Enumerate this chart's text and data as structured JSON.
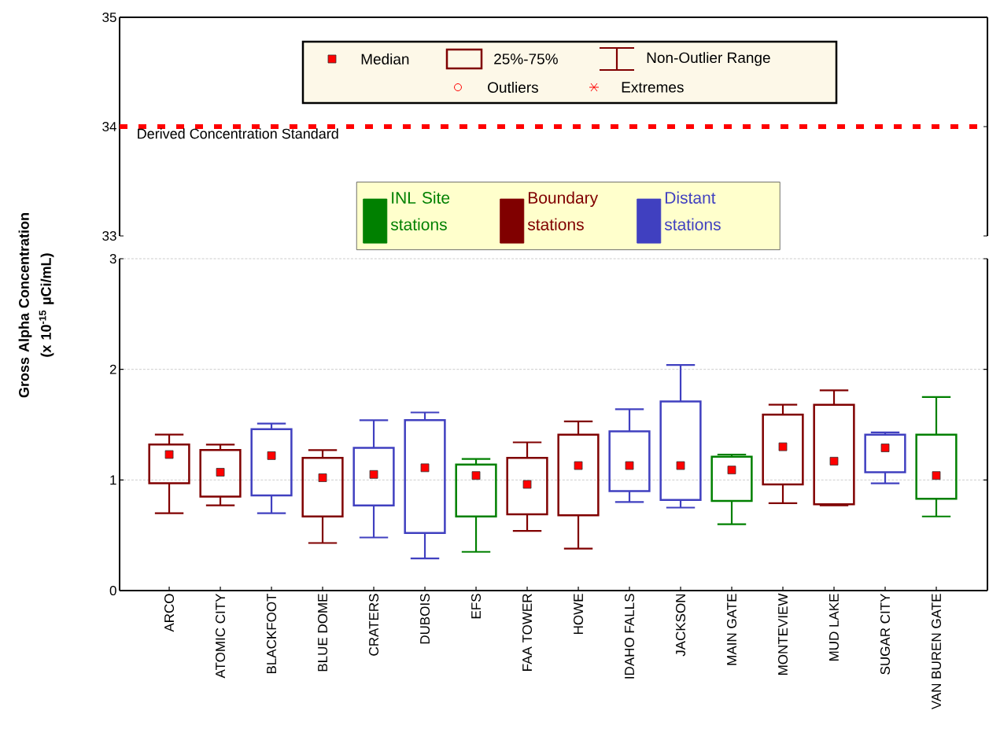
{
  "chart_data": [
    {
      "type": "box",
      "categories": [
        null,
        null,
        null,
        null,
        null,
        null,
        null,
        null,
        null,
        null,
        null,
        null,
        null,
        null,
        null,
        null
      ],
      "ylim": [
        33,
        35
      ],
      "yticks": [
        33,
        34,
        35
      ],
      "tick_labels": "y",
      "ref_lines": [
        {
          "axis": "y",
          "value": 34,
          "label": "Derived Concentration Standard",
          "color": "#ff0000",
          "line_style": "dashed"
        }
      ],
      "annotations": [
        "Median",
        "25%-75%",
        "Non-Outlier Range",
        "Outliers",
        "Extremes"
      ]
    },
    {
      "type": "box",
      "categories": [
        "ARCO",
        "ATOMIC CITY",
        "BLACKFOOT",
        "BLUE DOME",
        "CRATERS",
        "DUBOIS",
        "EFS",
        "FAA TOWER",
        "HOWE",
        "IDAHO FALLS",
        "JACKSON",
        "MAIN GATE",
        "MONTEVIEW",
        "MUD LAKE",
        "SUGAR CITY",
        "VAN BUREN GATE"
      ],
      "ylabel": "Gross Alpha Concentration (x 10$^{-15}$ µCi/mL)",
      "ylim": [
        0,
        3
      ],
      "yticks": [
        0,
        1,
        2,
        3
      ],
      "grid": "y",
      "legend": "top",
      "marker": "square",
      "series": [
        {
          "name": "INL Site stations",
          "color": "#008000",
          "boxes": [
            null,
            null,
            null,
            null,
            null,
            null,
            {
              "low": 0.35,
              "q1": 0.67,
              "median": 1.04,
              "q3": 1.14,
              "high": 1.19
            },
            null,
            null,
            null,
            null,
            {
              "low": 0.6,
              "q1": 0.81,
              "median": 1.09,
              "q3": 1.21,
              "high": 1.23
            },
            null,
            null,
            null,
            {
              "low": 0.67,
              "q1": 0.83,
              "median": 1.04,
              "q3": 1.41,
              "high": 1.75
            }
          ]
        },
        {
          "name": "Boundary stations",
          "color": "#800000",
          "boxes": [
            {
              "low": 0.7,
              "q1": 0.97,
              "median": 1.23,
              "q3": 1.32,
              "high": 1.41
            },
            {
              "low": 0.77,
              "q1": 0.85,
              "median": 1.07,
              "q3": 1.27,
              "high": 1.32
            },
            null,
            {
              "low": 0.43,
              "q1": 0.67,
              "median": 1.02,
              "q3": 1.2,
              "high": 1.27
            },
            null,
            null,
            null,
            {
              "low": 0.54,
              "q1": 0.69,
              "median": 0.96,
              "q3": 1.2,
              "high": 1.34
            },
            {
              "low": 0.38,
              "q1": 0.68,
              "median": 1.13,
              "q3": 1.41,
              "high": 1.53
            },
            null,
            null,
            null,
            {
              "low": 0.79,
              "q1": 0.96,
              "median": 1.3,
              "q3": 1.59,
              "high": 1.68
            },
            {
              "low": 0.77,
              "q1": 0.78,
              "median": 1.17,
              "q3": 1.68,
              "high": 1.81
            },
            null,
            null
          ]
        },
        {
          "name": "Distant stations",
          "color": "#4040c0",
          "boxes": [
            null,
            null,
            {
              "low": 0.7,
              "q1": 0.86,
              "median": 1.22,
              "q3": 1.46,
              "high": 1.51
            },
            null,
            {
              "low": 0.48,
              "q1": 0.77,
              "median": 1.05,
              "q3": 1.29,
              "high": 1.54
            },
            {
              "low": 0.29,
              "q1": 0.52,
              "median": 1.11,
              "q3": 1.54,
              "high": 1.61
            },
            null,
            null,
            null,
            {
              "low": 0.8,
              "q1": 0.9,
              "median": 1.13,
              "q3": 1.44,
              "high": 1.64
            },
            {
              "low": 0.75,
              "q1": 0.82,
              "median": 1.13,
              "q3": 1.71,
              "high": 2.04
            },
            null,
            null,
            null,
            {
              "low": 0.97,
              "q1": 1.07,
              "median": 1.29,
              "q3": 1.41,
              "high": 1.43
            },
            null
          ]
        }
      ]
    }
  ]
}
